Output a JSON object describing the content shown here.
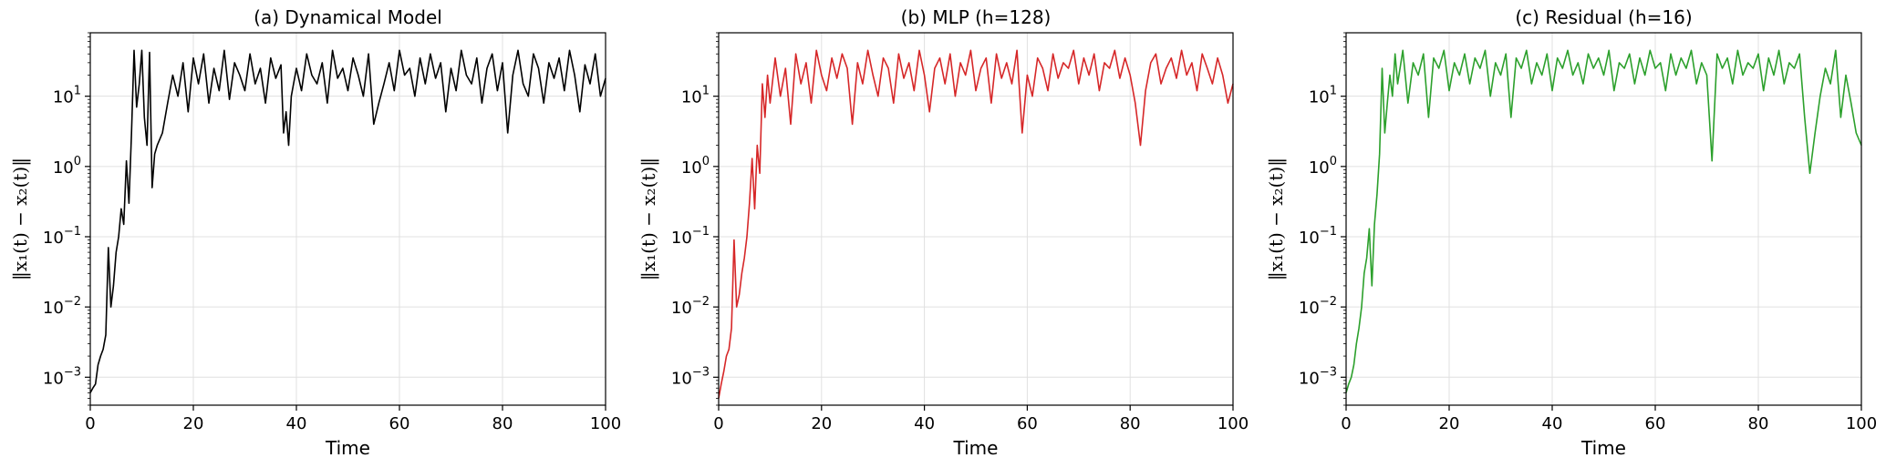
{
  "chart_data": [
    {
      "type": "line",
      "title": "(a) Dynamical Model",
      "xlabel": "Time",
      "ylabel": "‖x₁(t) − x₂(t)‖",
      "xlim": [
        0,
        100
      ],
      "ylim": [
        0.0004,
        80
      ],
      "yscale": "log",
      "grid": true,
      "color": "#000000",
      "xticks": [
        "0",
        "20",
        "40",
        "60",
        "80",
        "100"
      ],
      "yticks": [
        {
          "base": "10",
          "exp": "−3"
        },
        {
          "base": "10",
          "exp": "−2"
        },
        {
          "base": "10",
          "exp": "−1"
        },
        {
          "base": "10",
          "exp": "0"
        },
        {
          "base": "10",
          "exp": "1"
        }
      ],
      "x": [
        0,
        0.5,
        1,
        1.5,
        2,
        2.5,
        3,
        3.5,
        4,
        4.5,
        5,
        5.5,
        6,
        6.5,
        7,
        7.5,
        8,
        8.5,
        9,
        9.5,
        10,
        10.5,
        11,
        11.5,
        12,
        12.5,
        13,
        14,
        15,
        16,
        17,
        18,
        19,
        20,
        21,
        22,
        23,
        24,
        25,
        26,
        27,
        28,
        29,
        30,
        31,
        32,
        33,
        34,
        35,
        36,
        37,
        37.5,
        38,
        38.5,
        39,
        40,
        41,
        42,
        43,
        44,
        45,
        46,
        47,
        48,
        49,
        50,
        51,
        52,
        53,
        54,
        55,
        56,
        57,
        58,
        59,
        60,
        61,
        62,
        63,
        64,
        65,
        66,
        67,
        68,
        69,
        70,
        71,
        72,
        73,
        74,
        75,
        76,
        77,
        78,
        79,
        80,
        81,
        82,
        83,
        84,
        85,
        86,
        87,
        88,
        89,
        90,
        91,
        92,
        93,
        94,
        95,
        96,
        97,
        98,
        99,
        100
      ],
      "values": [
        0.0006,
        0.0007,
        0.0008,
        0.0015,
        0.002,
        0.0025,
        0.004,
        0.07,
        0.01,
        0.02,
        0.06,
        0.1,
        0.25,
        0.15,
        1.2,
        0.3,
        3,
        45,
        7,
        15,
        45,
        5,
        2,
        42,
        0.5,
        1.5,
        2,
        3,
        8,
        20,
        10,
        30,
        6,
        35,
        15,
        40,
        8,
        25,
        12,
        45,
        9,
        30,
        20,
        12,
        40,
        15,
        25,
        8,
        35,
        18,
        28,
        3,
        6,
        2,
        10,
        25,
        12,
        40,
        20,
        15,
        30,
        8,
        45,
        18,
        25,
        12,
        35,
        20,
        10,
        40,
        4,
        8,
        15,
        30,
        12,
        45,
        20,
        25,
        10,
        35,
        15,
        40,
        18,
        30,
        6,
        25,
        12,
        45,
        20,
        15,
        35,
        8,
        25,
        40,
        12,
        30,
        3,
        20,
        45,
        15,
        10,
        40,
        25,
        8,
        30,
        18,
        35,
        12,
        45,
        20,
        6,
        28,
        15,
        40,
        10,
        18
      ]
    },
    {
      "type": "line",
      "title": "(b) MLP (h=128)",
      "xlabel": "Time",
      "ylabel": "‖x₁(t) − x₂(t)‖",
      "xlim": [
        0,
        100
      ],
      "ylim": [
        0.0004,
        80
      ],
      "yscale": "log",
      "grid": true,
      "color": "#d62728",
      "xticks": [
        "0",
        "20",
        "40",
        "60",
        "80",
        "100"
      ],
      "yticks": [
        {
          "base": "10",
          "exp": "−3"
        },
        {
          "base": "10",
          "exp": "−2"
        },
        {
          "base": "10",
          "exp": "−1"
        },
        {
          "base": "10",
          "exp": "0"
        },
        {
          "base": "10",
          "exp": "1"
        }
      ],
      "x": [
        0,
        0.5,
        1,
        1.5,
        2,
        2.5,
        3,
        3.5,
        4,
        4.5,
        5,
        5.5,
        6,
        6.5,
        7,
        7.5,
        8,
        8.5,
        9,
        9.5,
        10,
        11,
        12,
        13,
        14,
        15,
        16,
        17,
        18,
        19,
        20,
        21,
        22,
        23,
        24,
        25,
        26,
        27,
        28,
        29,
        30,
        31,
        32,
        33,
        34,
        35,
        36,
        37,
        38,
        39,
        40,
        41,
        42,
        43,
        44,
        45,
        46,
        47,
        48,
        49,
        50,
        51,
        52,
        53,
        54,
        55,
        56,
        57,
        58,
        59,
        60,
        61,
        62,
        63,
        64,
        65,
        66,
        67,
        68,
        69,
        70,
        71,
        72,
        73,
        74,
        75,
        76,
        77,
        78,
        79,
        80,
        81,
        82,
        83,
        84,
        85,
        86,
        87,
        88,
        89,
        90,
        91,
        92,
        93,
        94,
        95,
        96,
        97,
        98,
        99,
        100
      ],
      "values": [
        0.0005,
        0.0008,
        0.0012,
        0.002,
        0.0025,
        0.005,
        0.09,
        0.01,
        0.015,
        0.03,
        0.05,
        0.1,
        0.3,
        1.3,
        0.25,
        2,
        0.8,
        15,
        5,
        20,
        8,
        35,
        10,
        25,
        4,
        40,
        15,
        30,
        8,
        45,
        20,
        12,
        35,
        18,
        40,
        25,
        4,
        30,
        15,
        45,
        20,
        10,
        35,
        25,
        8,
        40,
        18,
        30,
        12,
        45,
        20,
        6,
        25,
        35,
        15,
        40,
        10,
        30,
        20,
        45,
        12,
        25,
        35,
        8,
        40,
        18,
        30,
        15,
        45,
        3,
        20,
        10,
        35,
        25,
        12,
        40,
        18,
        30,
        25,
        45,
        15,
        35,
        20,
        40,
        12,
        30,
        25,
        45,
        18,
        35,
        20,
        8,
        2,
        12,
        30,
        40,
        15,
        25,
        35,
        18,
        45,
        20,
        30,
        12,
        40,
        25,
        15,
        35,
        20,
        8,
        15
      ]
    },
    {
      "type": "line",
      "title": "(c) Residual (h=16)",
      "xlabel": "Time",
      "ylabel": "‖x₁(t) − x₂(t)‖",
      "xlim": [
        0,
        100
      ],
      "ylim": [
        0.0004,
        80
      ],
      "yscale": "log",
      "grid": true,
      "color": "#2ca02c",
      "xticks": [
        "0",
        "20",
        "40",
        "60",
        "80",
        "100"
      ],
      "yticks": [
        {
          "base": "10",
          "exp": "−3"
        },
        {
          "base": "10",
          "exp": "−2"
        },
        {
          "base": "10",
          "exp": "−1"
        },
        {
          "base": "10",
          "exp": "0"
        },
        {
          "base": "10",
          "exp": "1"
        }
      ],
      "x": [
        0,
        0.5,
        1,
        1.5,
        2,
        2.5,
        3,
        3.5,
        4,
        4.5,
        5,
        5.5,
        6,
        6.5,
        7,
        7.5,
        8,
        8.5,
        9,
        9.5,
        10,
        11,
        12,
        13,
        14,
        15,
        16,
        17,
        18,
        19,
        20,
        21,
        22,
        23,
        24,
        25,
        26,
        27,
        28,
        29,
        30,
        31,
        32,
        33,
        34,
        35,
        36,
        37,
        38,
        39,
        40,
        41,
        42,
        43,
        44,
        45,
        46,
        47,
        48,
        49,
        50,
        51,
        52,
        53,
        54,
        55,
        56,
        57,
        58,
        59,
        60,
        61,
        62,
        63,
        64,
        65,
        66,
        67,
        68,
        69,
        70,
        71,
        72,
        73,
        74,
        75,
        76,
        77,
        78,
        79,
        80,
        81,
        82,
        83,
        84,
        85,
        86,
        87,
        88,
        89,
        90,
        91,
        92,
        93,
        94,
        95,
        96,
        97,
        98,
        99,
        100
      ],
      "values": [
        0.0006,
        0.0008,
        0.001,
        0.0015,
        0.003,
        0.005,
        0.01,
        0.03,
        0.05,
        0.13,
        0.02,
        0.15,
        0.4,
        1.5,
        25,
        3,
        8,
        20,
        10,
        40,
        15,
        45,
        8,
        30,
        20,
        40,
        5,
        35,
        25,
        45,
        12,
        30,
        20,
        40,
        15,
        35,
        25,
        45,
        10,
        30,
        20,
        40,
        5,
        35,
        25,
        45,
        15,
        30,
        20,
        40,
        12,
        35,
        25,
        45,
        20,
        30,
        15,
        40,
        25,
        35,
        20,
        45,
        12,
        30,
        25,
        40,
        15,
        35,
        20,
        45,
        25,
        30,
        12,
        40,
        20,
        35,
        25,
        45,
        15,
        30,
        20,
        1.2,
        40,
        25,
        35,
        15,
        45,
        20,
        30,
        25,
        40,
        12,
        35,
        20,
        45,
        15,
        30,
        25,
        40,
        5,
        0.8,
        3,
        10,
        25,
        15,
        45,
        5,
        20,
        8,
        3,
        2
      ]
    }
  ]
}
